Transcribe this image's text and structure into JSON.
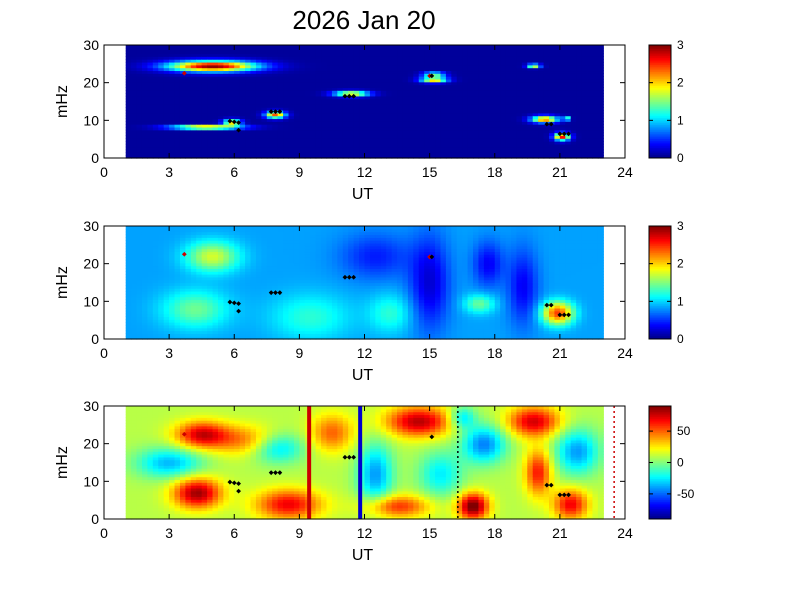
{
  "figure": {
    "title": "2026 Jan 20"
  },
  "chart_data": [
    {
      "type": "heatmap",
      "xlabel": "UT",
      "ylabel": "mHz",
      "xlim": [
        0,
        24
      ],
      "ylim": [
        0,
        30
      ],
      "xticks": [
        0,
        3,
        6,
        9,
        12,
        15,
        18,
        21,
        24
      ],
      "yticks": [
        0,
        10,
        20,
        30
      ],
      "colormap": "jet",
      "colorbar": {
        "range": [
          0,
          3
        ],
        "ticks": [
          0,
          1,
          2,
          3
        ]
      },
      "data_span": [
        1,
        23
      ],
      "background_level": 0.08,
      "blobs": [
        {
          "ut": 5.0,
          "mhz": 24.5,
          "ut_width": 2.0,
          "mhz_width": 1.4,
          "value": 2.9
        },
        {
          "ut": 4.7,
          "mhz": 8.3,
          "ut_width": 1.6,
          "mhz_width": 0.5,
          "value": 2.7
        },
        {
          "ut": 5.9,
          "mhz": 9.6,
          "ut_width": 0.4,
          "mhz_width": 0.8,
          "value": 2.0
        },
        {
          "ut": 7.9,
          "mhz": 11.6,
          "ut_width": 0.45,
          "mhz_width": 0.9,
          "value": 2.3
        },
        {
          "ut": 11.4,
          "mhz": 17.2,
          "ut_width": 0.8,
          "mhz_width": 0.7,
          "value": 2.1
        },
        {
          "ut": 15.2,
          "mhz": 20.9,
          "ut_width": 0.6,
          "mhz_width": 0.7,
          "value": 2.2
        },
        {
          "ut": 15.2,
          "mhz": 22.4,
          "ut_width": 0.5,
          "mhz_width": 0.5,
          "value": 1.8
        },
        {
          "ut": 19.8,
          "mhz": 24.6,
          "ut_width": 0.3,
          "mhz_width": 0.5,
          "value": 2.0
        },
        {
          "ut": 20.3,
          "mhz": 10.4,
          "ut_width": 0.6,
          "mhz_width": 0.9,
          "value": 2.3
        },
        {
          "ut": 21.1,
          "mhz": 5.8,
          "ut_width": 0.35,
          "mhz_width": 1.0,
          "value": 2.6
        },
        {
          "ut": 21.3,
          "mhz": 10.6,
          "ut_width": 0.15,
          "mhz_width": 0.5,
          "value": 1.8
        }
      ],
      "markers": [
        {
          "ut": 3.7,
          "mhz": 22.5,
          "color": "#cc0000"
        },
        {
          "ut": 5.8,
          "mhz": 9.8,
          "color": "#000000"
        },
        {
          "ut": 6.0,
          "mhz": 9.6,
          "color": "#000000"
        },
        {
          "ut": 6.2,
          "mhz": 9.4,
          "color": "#000000"
        },
        {
          "ut": 6.2,
          "mhz": 7.4,
          "color": "#000000"
        },
        {
          "ut": 7.7,
          "mhz": 12.3,
          "color": "#000000"
        },
        {
          "ut": 7.9,
          "mhz": 12.3,
          "color": "#000000"
        },
        {
          "ut": 8.1,
          "mhz": 12.3,
          "color": "#000000"
        },
        {
          "ut": 11.1,
          "mhz": 16.4,
          "color": "#000000"
        },
        {
          "ut": 11.3,
          "mhz": 16.4,
          "color": "#000000"
        },
        {
          "ut": 11.5,
          "mhz": 16.4,
          "color": "#000000"
        },
        {
          "ut": 15.0,
          "mhz": 21.8,
          "color": "#cc0000"
        },
        {
          "ut": 15.1,
          "mhz": 21.8,
          "color": "#000000"
        },
        {
          "ut": 20.4,
          "mhz": 9.0,
          "color": "#000000"
        },
        {
          "ut": 20.6,
          "mhz": 9.0,
          "color": "#000000"
        },
        {
          "ut": 21.0,
          "mhz": 6.4,
          "color": "#000000"
        },
        {
          "ut": 21.2,
          "mhz": 6.4,
          "color": "#000000"
        },
        {
          "ut": 21.4,
          "mhz": 6.4,
          "color": "#000000"
        }
      ]
    },
    {
      "type": "heatmap",
      "xlabel": "UT",
      "ylabel": "mHz",
      "xlim": [
        0,
        24
      ],
      "ylim": [
        0,
        30
      ],
      "xticks": [
        0,
        3,
        6,
        9,
        12,
        15,
        18,
        21,
        24
      ],
      "yticks": [
        0,
        10,
        20,
        30
      ],
      "colormap": "jet",
      "colorbar": {
        "range": [
          0,
          3
        ],
        "ticks": [
          0,
          1,
          2,
          3
        ]
      },
      "data_span": [
        1,
        23
      ],
      "background_level": 0.85,
      "blobs": [
        {
          "ut": 5.0,
          "mhz": 22.0,
          "ut_width": 1.2,
          "mhz_width": 4.0,
          "value": 0.9
        },
        {
          "ut": 4.2,
          "mhz": 8.0,
          "ut_width": 1.5,
          "mhz_width": 5.0,
          "value": 0.6
        },
        {
          "ut": 9.5,
          "mhz": 6.0,
          "ut_width": 1.8,
          "mhz_width": 6.0,
          "value": 0.4
        },
        {
          "ut": 12.5,
          "mhz": 22.0,
          "ut_width": 1.6,
          "mhz_width": 6.0,
          "value": -0.4
        },
        {
          "ut": 15.0,
          "mhz": 15.0,
          "ut_width": 0.9,
          "mhz_width": 12.0,
          "value": -0.6
        },
        {
          "ut": 17.3,
          "mhz": 9.5,
          "ut_width": 0.7,
          "mhz_width": 2.5,
          "value": 0.6
        },
        {
          "ut": 17.7,
          "mhz": 20.0,
          "ut_width": 0.7,
          "mhz_width": 6.0,
          "value": -0.5
        },
        {
          "ut": 19.3,
          "mhz": 14.0,
          "ut_width": 0.7,
          "mhz_width": 10.0,
          "value": -0.5
        },
        {
          "ut": 20.9,
          "mhz": 7.0,
          "ut_width": 0.7,
          "mhz_width": 3.0,
          "value": 1.6
        },
        {
          "ut": 13.2,
          "mhz": 7.0,
          "ut_width": 1.0,
          "mhz_width": 5.0,
          "value": 0.4
        }
      ],
      "markers": [
        {
          "ut": 3.7,
          "mhz": 22.5,
          "color": "#cc0000"
        },
        {
          "ut": 5.8,
          "mhz": 9.8,
          "color": "#000000"
        },
        {
          "ut": 6.0,
          "mhz": 9.6,
          "color": "#000000"
        },
        {
          "ut": 6.2,
          "mhz": 9.4,
          "color": "#000000"
        },
        {
          "ut": 6.2,
          "mhz": 7.4,
          "color": "#000000"
        },
        {
          "ut": 7.7,
          "mhz": 12.3,
          "color": "#000000"
        },
        {
          "ut": 7.9,
          "mhz": 12.3,
          "color": "#000000"
        },
        {
          "ut": 8.1,
          "mhz": 12.3,
          "color": "#000000"
        },
        {
          "ut": 11.1,
          "mhz": 16.4,
          "color": "#000000"
        },
        {
          "ut": 11.3,
          "mhz": 16.4,
          "color": "#000000"
        },
        {
          "ut": 11.5,
          "mhz": 16.4,
          "color": "#000000"
        },
        {
          "ut": 15.0,
          "mhz": 21.8,
          "color": "#cc0000"
        },
        {
          "ut": 15.1,
          "mhz": 21.8,
          "color": "#000000"
        },
        {
          "ut": 20.4,
          "mhz": 9.0,
          "color": "#000000"
        },
        {
          "ut": 20.6,
          "mhz": 9.0,
          "color": "#000000"
        },
        {
          "ut": 21.0,
          "mhz": 6.4,
          "color": "#000000"
        },
        {
          "ut": 21.2,
          "mhz": 6.4,
          "color": "#000000"
        },
        {
          "ut": 21.4,
          "mhz": 6.4,
          "color": "#000000"
        }
      ]
    },
    {
      "type": "heatmap",
      "xlabel": "UT",
      "ylabel": "mHz",
      "xlim": [
        0,
        24
      ],
      "ylim": [
        0,
        30
      ],
      "xticks": [
        0,
        3,
        6,
        9,
        12,
        15,
        18,
        21,
        24
      ],
      "yticks": [
        0,
        10,
        20,
        30
      ],
      "colormap": "jet",
      "colorbar": {
        "range": [
          -90,
          90
        ],
        "ticks": [
          -50,
          0,
          50
        ]
      },
      "data_span": [
        1,
        23
      ],
      "background_level": 10,
      "blobs": [
        {
          "ut": 4.5,
          "mhz": 22.5,
          "ut_width": 1.2,
          "mhz_width": 3.5,
          "value": 65
        },
        {
          "ut": 4.3,
          "mhz": 7.0,
          "ut_width": 1.1,
          "mhz_width": 4.0,
          "value": 75
        },
        {
          "ut": 6.5,
          "mhz": 21.0,
          "ut_width": 1.5,
          "mhz_width": 4.0,
          "value": 35
        },
        {
          "ut": 8.5,
          "mhz": 4.0,
          "ut_width": 1.5,
          "mhz_width": 4.0,
          "value": 60
        },
        {
          "ut": 3.0,
          "mhz": 15.0,
          "ut_width": 1.5,
          "mhz_width": 4.0,
          "value": -45
        },
        {
          "ut": 8.0,
          "mhz": 19.0,
          "ut_width": 1.2,
          "mhz_width": 4.0,
          "value": -40
        },
        {
          "ut": 10.5,
          "mhz": 23.0,
          "ut_width": 1.0,
          "mhz_width": 5.0,
          "value": 40
        },
        {
          "ut": 12.5,
          "mhz": 12.0,
          "ut_width": 0.8,
          "mhz_width": 8.0,
          "value": -50
        },
        {
          "ut": 14.5,
          "mhz": 26.0,
          "ut_width": 1.5,
          "mhz_width": 4.0,
          "value": 70
        },
        {
          "ut": 13.5,
          "mhz": 3.5,
          "ut_width": 1.5,
          "mhz_width": 3.0,
          "value": 50
        },
        {
          "ut": 15.5,
          "mhz": 12.0,
          "ut_width": 1.0,
          "mhz_width": 6.0,
          "value": -35
        },
        {
          "ut": 17.0,
          "mhz": 3.5,
          "ut_width": 0.7,
          "mhz_width": 3.5,
          "value": 85
        },
        {
          "ut": 17.5,
          "mhz": 20.0,
          "ut_width": 1.0,
          "mhz_width": 5.0,
          "value": -55
        },
        {
          "ut": 19.8,
          "mhz": 26.0,
          "ut_width": 1.2,
          "mhz_width": 4.0,
          "value": 65
        },
        {
          "ut": 20.0,
          "mhz": 12.5,
          "ut_width": 0.6,
          "mhz_width": 6.0,
          "value": 55
        },
        {
          "ut": 21.8,
          "mhz": 18.0,
          "ut_width": 1.0,
          "mhz_width": 6.0,
          "value": -50
        },
        {
          "ut": 21.5,
          "mhz": 4.0,
          "ut_width": 0.8,
          "mhz_width": 4.0,
          "value": 60
        },
        {
          "ut": 16.5,
          "mhz": 27.0,
          "ut_width": 0.6,
          "mhz_width": 3.0,
          "value": -40
        }
      ],
      "vertical_lines": [
        {
          "ut": 9.45,
          "color": "#cc0000",
          "style": "solid"
        },
        {
          "ut": 11.8,
          "color": "#0000cc",
          "style": "solid"
        },
        {
          "ut": 16.3,
          "color": "#000000",
          "style": "dotted"
        },
        {
          "ut": 23.5,
          "color": "#cc0000",
          "style": "dotted"
        }
      ],
      "markers": [
        {
          "ut": 3.7,
          "mhz": 22.5,
          "color": "#cc0000"
        },
        {
          "ut": 5.8,
          "mhz": 9.8,
          "color": "#000000"
        },
        {
          "ut": 6.0,
          "mhz": 9.6,
          "color": "#000000"
        },
        {
          "ut": 6.2,
          "mhz": 9.4,
          "color": "#000000"
        },
        {
          "ut": 6.2,
          "mhz": 7.4,
          "color": "#000000"
        },
        {
          "ut": 7.7,
          "mhz": 12.3,
          "color": "#000000"
        },
        {
          "ut": 7.9,
          "mhz": 12.3,
          "color": "#000000"
        },
        {
          "ut": 8.1,
          "mhz": 12.3,
          "color": "#000000"
        },
        {
          "ut": 11.1,
          "mhz": 16.4,
          "color": "#000000"
        },
        {
          "ut": 11.3,
          "mhz": 16.4,
          "color": "#000000"
        },
        {
          "ut": 11.5,
          "mhz": 16.4,
          "color": "#000000"
        },
        {
          "ut": 15.1,
          "mhz": 21.8,
          "color": "#000000"
        },
        {
          "ut": 20.4,
          "mhz": 9.0,
          "color": "#000000"
        },
        {
          "ut": 20.6,
          "mhz": 9.0,
          "color": "#000000"
        },
        {
          "ut": 21.0,
          "mhz": 6.4,
          "color": "#000000"
        },
        {
          "ut": 21.2,
          "mhz": 6.4,
          "color": "#000000"
        },
        {
          "ut": 21.4,
          "mhz": 6.4,
          "color": "#000000"
        }
      ]
    }
  ]
}
